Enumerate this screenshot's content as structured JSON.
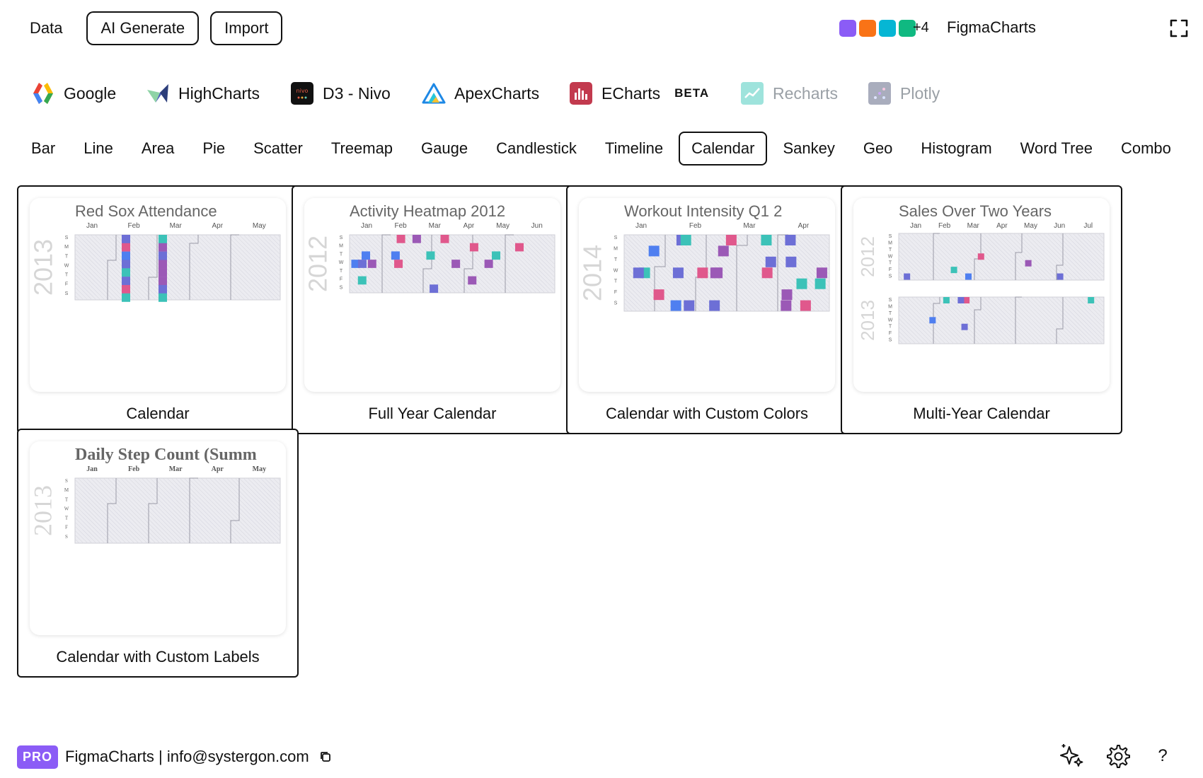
{
  "header": {
    "data_label": "Data",
    "ai_generate_label": "AI Generate",
    "import_label": "Import",
    "palette_colors": [
      "#8b5cf6",
      "#f97316",
      "#06b6d4",
      "#10b981"
    ],
    "palette_more": "+4",
    "brand": "FigmaCharts",
    "fullscreen_icon": "expand-icon"
  },
  "libraries": [
    {
      "label": "Google",
      "icon": "google-logo-icon",
      "enabled": true
    },
    {
      "label": "HighCharts",
      "icon": "highcharts-logo-icon",
      "enabled": true
    },
    {
      "label": "D3 - Nivo",
      "icon": "nivo-logo-icon",
      "enabled": true
    },
    {
      "label": "ApexCharts",
      "icon": "apexcharts-logo-icon",
      "enabled": true
    },
    {
      "label": "ECharts",
      "icon": "echarts-logo-icon",
      "enabled": true,
      "badge": "BETA"
    },
    {
      "label": "Recharts",
      "icon": "recharts-logo-icon",
      "enabled": false
    },
    {
      "label": "Plotly",
      "icon": "plotly-logo-icon",
      "enabled": false
    }
  ],
  "chart_types": [
    {
      "label": "Bar"
    },
    {
      "label": "Line"
    },
    {
      "label": "Area"
    },
    {
      "label": "Pie"
    },
    {
      "label": "Scatter"
    },
    {
      "label": "Treemap"
    },
    {
      "label": "Gauge"
    },
    {
      "label": "Candlestick"
    },
    {
      "label": "Timeline"
    },
    {
      "label": "Calendar",
      "active": true
    },
    {
      "label": "Sankey"
    },
    {
      "label": "Geo"
    },
    {
      "label": "Histogram"
    },
    {
      "label": "Word Tree"
    },
    {
      "label": "Combo"
    }
  ],
  "cards": [
    {
      "label": "Calendar",
      "preview": {
        "title": "Red Sox Attendance",
        "years": [
          "2013"
        ],
        "months": [
          "Jan",
          "Feb",
          "Mar",
          "Apr",
          "May"
        ],
        "font": "sans"
      }
    },
    {
      "label": "Full Year Calendar",
      "preview": {
        "title": "Activity Heatmap 2012",
        "years": [
          "2012"
        ],
        "months": [
          "Jan",
          "Feb",
          "Mar",
          "Apr",
          "May",
          "Jun"
        ],
        "font": "sans"
      }
    },
    {
      "label": "Calendar with Custom Colors",
      "preview": {
        "title": "Workout Intensity Q1 2",
        "years": [
          "2014"
        ],
        "months": [
          "Jan",
          "Feb",
          "Mar",
          "Apr"
        ],
        "font": "sans"
      }
    },
    {
      "label": "Multi-Year Calendar",
      "preview": {
        "title": "Sales Over Two Years",
        "years": [
          "2012",
          "2013"
        ],
        "months": [
          "Jan",
          "Feb",
          "Mar",
          "Apr",
          "May",
          "Jun",
          "Jul"
        ],
        "font": "sans"
      }
    },
    {
      "label": "Calendar with Custom Labels",
      "preview": {
        "title": "Daily Step Count (Summ",
        "years": [
          "2013"
        ],
        "months": [
          "Jan",
          "Feb",
          "Mar",
          "Apr",
          "May"
        ],
        "font": "serif"
      }
    }
  ],
  "weekdays": [
    "S",
    "M",
    "T",
    "W",
    "T",
    "F",
    "S"
  ],
  "footer": {
    "badge": "PRO",
    "text": "FigmaCharts | info@systergon.com",
    "icons": [
      "sparkles-icon",
      "gear-icon",
      "help-icon"
    ],
    "help_glyph": "?"
  }
}
